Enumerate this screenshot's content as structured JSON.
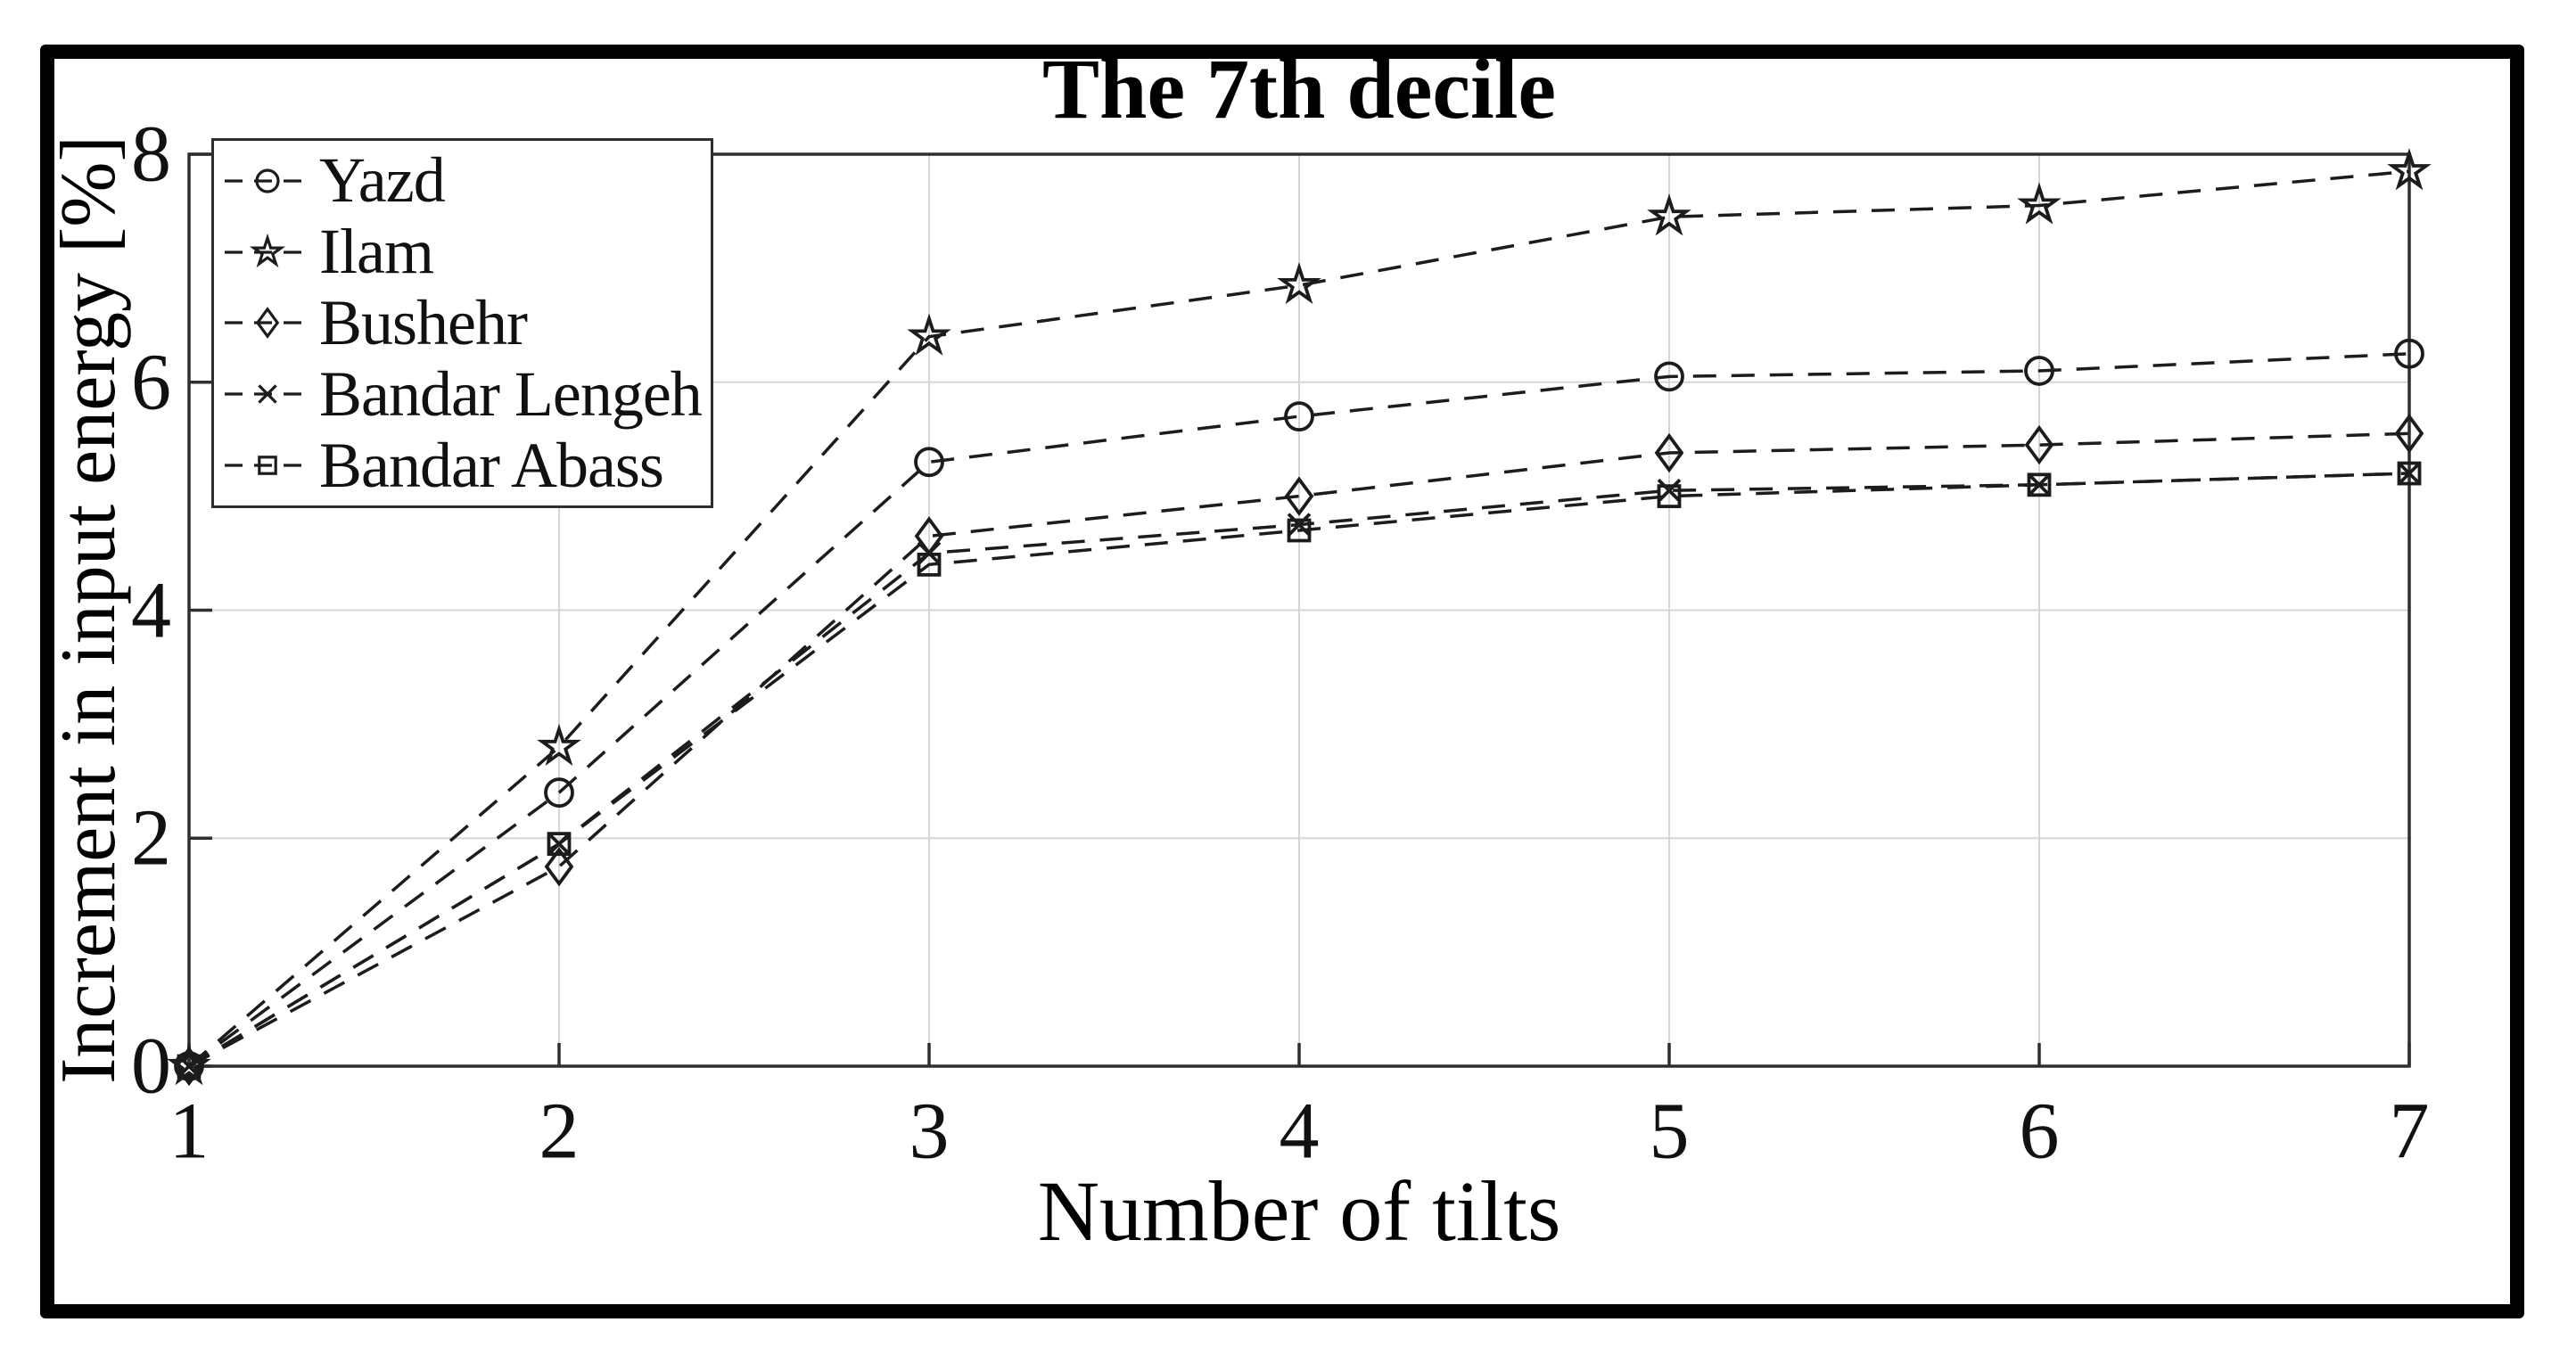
{
  "figure": {
    "background": "#ffffff",
    "border_color": "#000000",
    "axes_color": "#2e2e2e",
    "grid_color": "#d6d6d6",
    "line_color": "#1c1c1c"
  },
  "chart_data": {
    "type": "line",
    "title": "The 7th decile",
    "xlabel": "Number of tilts",
    "ylabel": "Increment in input energy [%]",
    "x": [
      1,
      2,
      3,
      4,
      5,
      6,
      7
    ],
    "xlim": [
      1,
      7
    ],
    "ylim": [
      0,
      8
    ],
    "xticks": [
      1,
      2,
      3,
      4,
      5,
      6,
      7
    ],
    "yticks": [
      0,
      2,
      4,
      6,
      8
    ],
    "grid": true,
    "line_style": "dashed",
    "legend_position": "top-left",
    "series": [
      {
        "name": "Yazd",
        "marker": "circle",
        "values": [
          0,
          2.4,
          5.3,
          5.7,
          6.05,
          6.1,
          6.25
        ]
      },
      {
        "name": "Ilam",
        "marker": "star",
        "values": [
          0,
          2.8,
          6.4,
          6.85,
          7.45,
          7.55,
          7.85
        ]
      },
      {
        "name": "Bushehr",
        "marker": "diamond",
        "values": [
          0,
          1.75,
          4.65,
          5.0,
          5.38,
          5.45,
          5.55
        ]
      },
      {
        "name": "Bandar Lengeh",
        "marker": "x",
        "values": [
          0,
          1.95,
          4.5,
          4.75,
          5.05,
          5.1,
          5.2
        ]
      },
      {
        "name": "Bandar Abass",
        "marker": "square",
        "values": [
          0,
          1.95,
          4.4,
          4.7,
          5.0,
          5.1,
          5.2
        ]
      }
    ]
  }
}
